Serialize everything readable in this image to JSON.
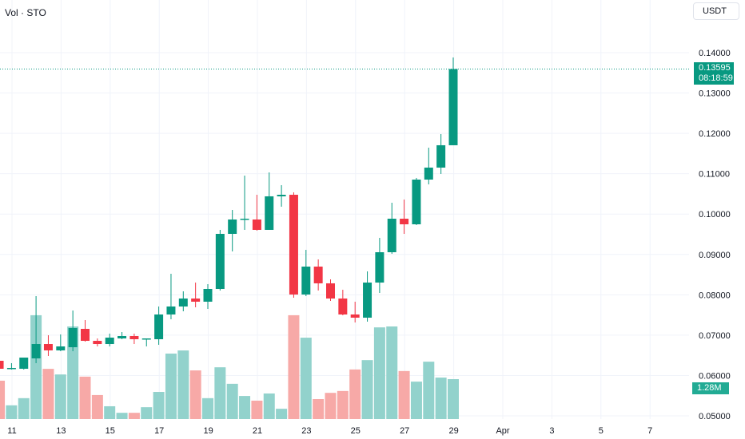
{
  "header": {
    "title": "Vol · STO"
  },
  "currency_button": "USDT",
  "last_price": {
    "value": "0.13595",
    "countdown": "08:18:59"
  },
  "volume_label": "1.28M",
  "colors": {
    "up": "#089981",
    "down": "#f23645",
    "vol_up": "#92d2cc",
    "vol_down": "#f7a9a7",
    "grid": "#f0f3fa"
  },
  "chart_data": {
    "type": "candlestick",
    "interval": "12h",
    "y_ticks": [
      "0.14000",
      "0.13000",
      "0.12000",
      "0.11000",
      "0.10000",
      "0.09000",
      "0.08000",
      "0.07000",
      "0.06000",
      "0.05000"
    ],
    "ylim": [
      0.05,
      0.14
    ],
    "x_ticks": [
      "11",
      "13",
      "15",
      "17",
      "19",
      "21",
      "23",
      "25",
      "27",
      "29",
      "Apr",
      "3",
      "5",
      "7"
    ],
    "candles": [
      [
        0.06365,
        0.06404,
        0.06127,
        0.06167,
        1.23
      ],
      [
        0.06167,
        0.06306,
        0.06147,
        0.06187,
        0.44
      ],
      [
        0.06167,
        0.06444,
        0.06147,
        0.06444,
        0.67
      ],
      [
        0.06424,
        0.07967,
        0.06306,
        0.0678,
        3.33
      ],
      [
        0.0678,
        0.06998,
        0.06484,
        0.06622,
        1.61
      ],
      [
        0.06622,
        0.07018,
        0.06602,
        0.06721,
        1.43
      ],
      [
        0.06701,
        0.07611,
        0.06602,
        0.07176,
        2.97
      ],
      [
        0.07156,
        0.07374,
        0.0684,
        0.06859,
        1.36
      ],
      [
        0.06859,
        0.06919,
        0.06721,
        0.0678,
        0.77
      ],
      [
        0.0678,
        0.07038,
        0.06721,
        0.06939,
        0.41
      ],
      [
        0.06919,
        0.07077,
        0.06899,
        0.06978,
        0.2
      ],
      [
        0.06978,
        0.07038,
        0.0678,
        0.06899,
        0.2
      ],
      [
        0.0691,
        0.06919,
        0.06721,
        0.06919,
        0.38
      ],
      [
        0.06899,
        0.0771,
        0.06761,
        0.07512,
        0.87
      ],
      [
        0.07512,
        0.08521,
        0.07394,
        0.0771,
        2.1
      ],
      [
        0.0771,
        0.08086,
        0.07591,
        0.07908,
        2.2
      ],
      [
        0.07908,
        0.08303,
        0.0769,
        0.07829,
        1.56
      ],
      [
        0.07829,
        0.08264,
        0.07651,
        0.08145,
        0.67
      ],
      [
        0.08145,
        0.09609,
        0.08106,
        0.0951,
        1.66
      ],
      [
        0.0951,
        0.10103,
        0.09075,
        0.09866,
        1.13
      ],
      [
        0.09866,
        0.10954,
        0.09609,
        0.09886,
        0.74
      ],
      [
        0.09866,
        0.10479,
        0.09589,
        0.09609,
        0.59
      ],
      [
        0.09609,
        0.11033,
        0.09609,
        0.1044,
        0.82
      ],
      [
        0.1044,
        0.10717,
        0.10183,
        0.10479,
        0.33
      ],
      [
        0.10479,
        0.10539,
        0.07928,
        0.08007,
        3.33
      ],
      [
        0.08007,
        0.09114,
        0.07967,
        0.08699,
        2.61
      ],
      [
        0.08699,
        0.08877,
        0.08106,
        0.08284,
        0.64
      ],
      [
        0.08284,
        0.08383,
        0.07848,
        0.07908,
        0.84
      ],
      [
        0.07908,
        0.08125,
        0.07492,
        0.07512,
        0.9
      ],
      [
        0.07512,
        0.07829,
        0.07314,
        0.07433,
        1.59
      ],
      [
        0.07433,
        0.0858,
        0.07334,
        0.08303,
        1.89
      ],
      [
        0.08303,
        0.09411,
        0.08046,
        0.09055,
        2.94
      ],
      [
        0.09055,
        0.10281,
        0.09015,
        0.09886,
        2.97
      ],
      [
        0.09886,
        0.10361,
        0.0951,
        0.09747,
        1.54
      ],
      [
        0.09747,
        0.10895,
        0.09728,
        0.10855,
        1.2
      ],
      [
        0.10855,
        0.11646,
        0.10736,
        0.11152,
        1.84
      ],
      [
        0.11152,
        0.11982,
        0.10994,
        0.11706,
        1.33
      ],
      [
        0.11706,
        0.13881,
        0.11706,
        0.13595,
        1.28
      ]
    ],
    "candle_fields": [
      "open",
      "high",
      "low",
      "close",
      "volume_millions"
    ]
  }
}
